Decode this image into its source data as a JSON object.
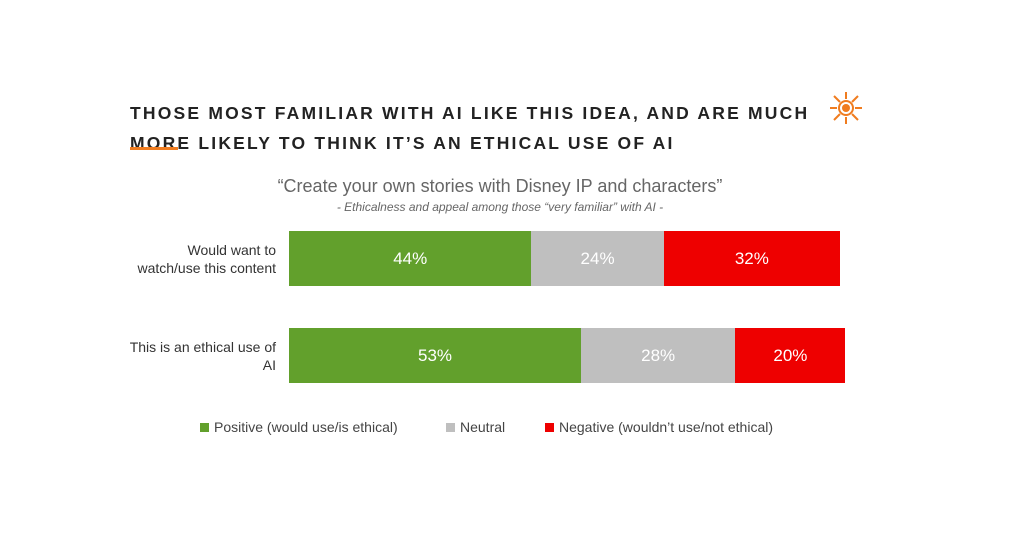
{
  "chart_data": {
    "type": "bar",
    "orientation": "horizontal",
    "stacked": true,
    "title": "THOSE MOST FAMILIAR WITH AI LIKE THIS IDEA, AND ARE MUCH MORE LIKELY TO THINK IT’S AN ETHICAL USE OF AI",
    "subtitle": "“Create your own stories with Disney IP and characters”",
    "note": "- Ethicalness and appeal among those “very familiar” with AI -",
    "categories": [
      "Would want to watch/use this content",
      "This is an ethical use of AI"
    ],
    "series": [
      {
        "name": "Positive (would use/is ethical)",
        "color": "#62a02c",
        "values": [
          44,
          53
        ],
        "value_labels": [
          "44%",
          "53%"
        ]
      },
      {
        "name": "Neutral",
        "color": "#bfbfbf",
        "values": [
          24,
          28
        ],
        "value_labels": [
          "24%",
          "28%"
        ]
      },
      {
        "name": "Negative (wouldn’t use/not ethical)",
        "color": "#ee0000",
        "values": [
          32,
          20
        ],
        "value_labels": [
          "32%",
          "20%"
        ]
      }
    ]
  }
}
